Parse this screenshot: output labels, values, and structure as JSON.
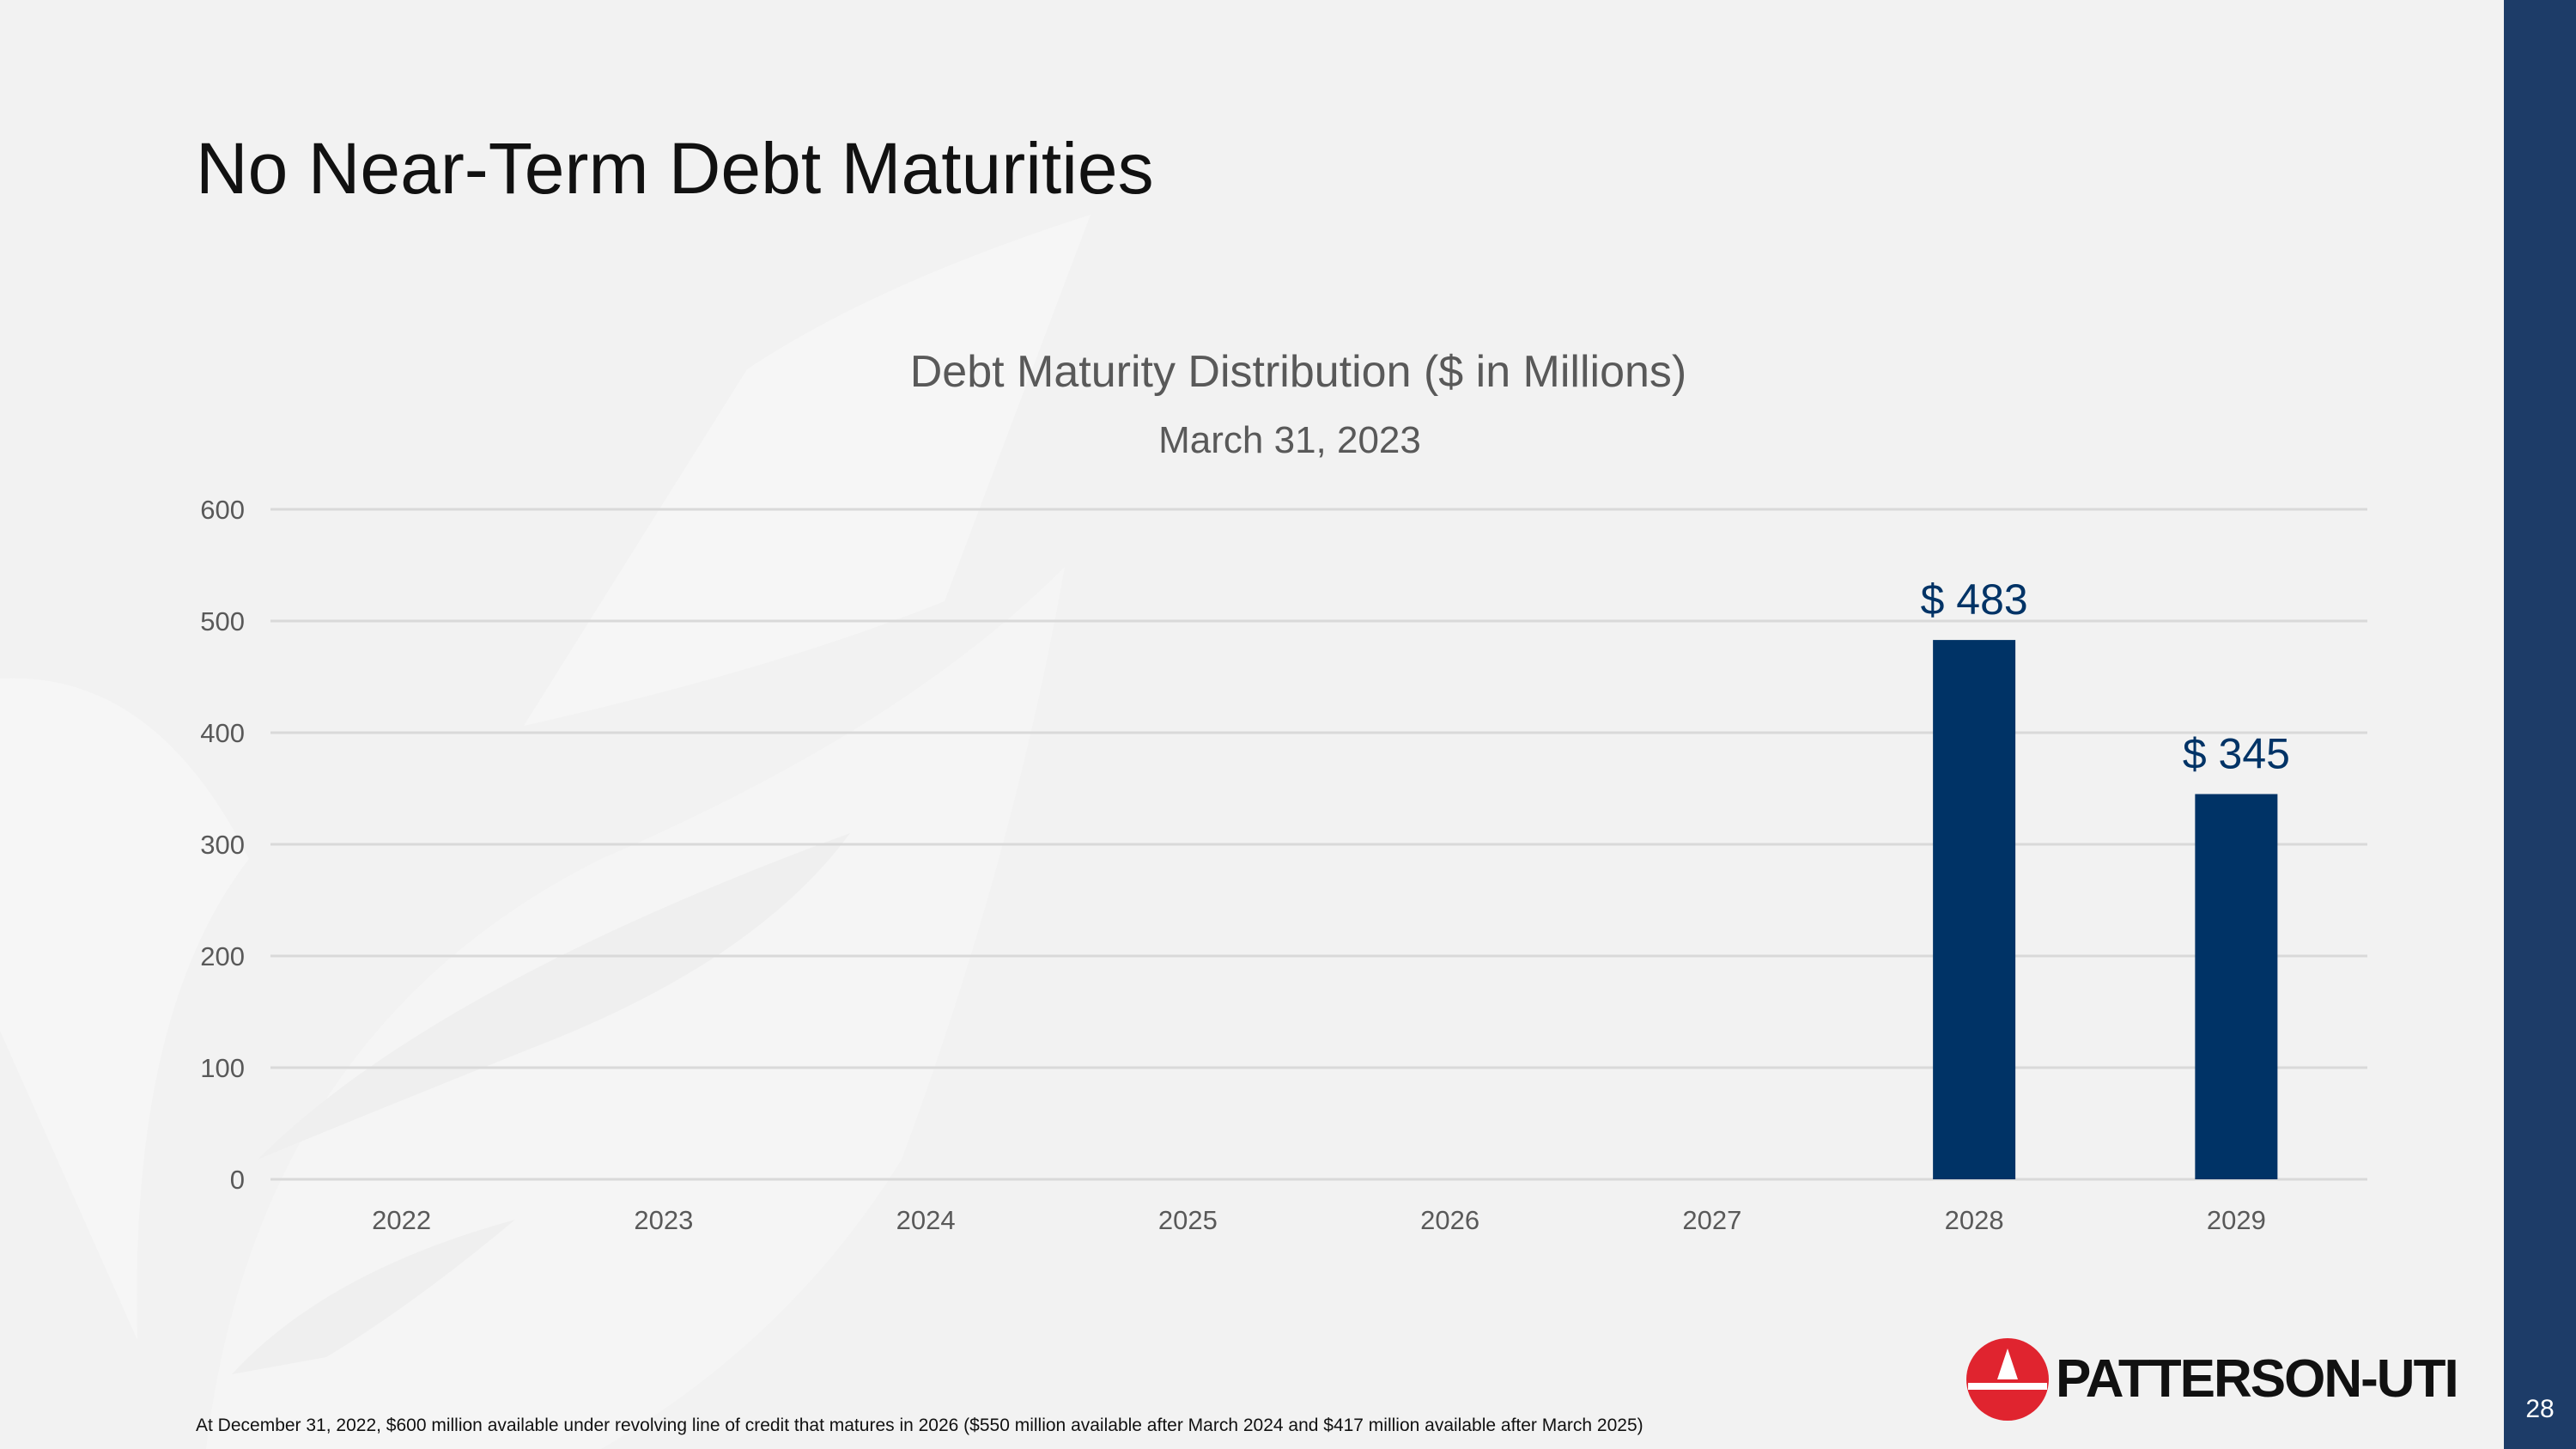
{
  "slide": {
    "title": "No Near-Term Debt Maturities",
    "page_number": "28",
    "footnote": "At December 31, 2022, $600 million available under revolving line of credit that matures in 2026 ($550 million available after March 2024 and $417 million available after March 2025)"
  },
  "logo": {
    "text": "PATTERSON-UTI",
    "mark_color": "#e0242f"
  },
  "colors": {
    "accent": "#1d3c68",
    "bar": "#003366",
    "background": "#f2f2f2"
  },
  "chart_data": {
    "type": "bar",
    "title": "Debt Maturity Distribution ($ in Millions)",
    "subtitle": "March 31, 2023",
    "categories": [
      "2022",
      "2023",
      "2024",
      "2025",
      "2026",
      "2027",
      "2028",
      "2029"
    ],
    "values": [
      0,
      0,
      0,
      0,
      0,
      0,
      483,
      345
    ],
    "data_labels": [
      "",
      "",
      "",
      "",
      "",
      "",
      "$ 483",
      "$ 345"
    ],
    "ylim": [
      0,
      600
    ],
    "yticks": [
      0,
      100,
      200,
      300,
      400,
      500,
      600
    ],
    "xlabel": "",
    "ylabel": "",
    "grid": true
  }
}
